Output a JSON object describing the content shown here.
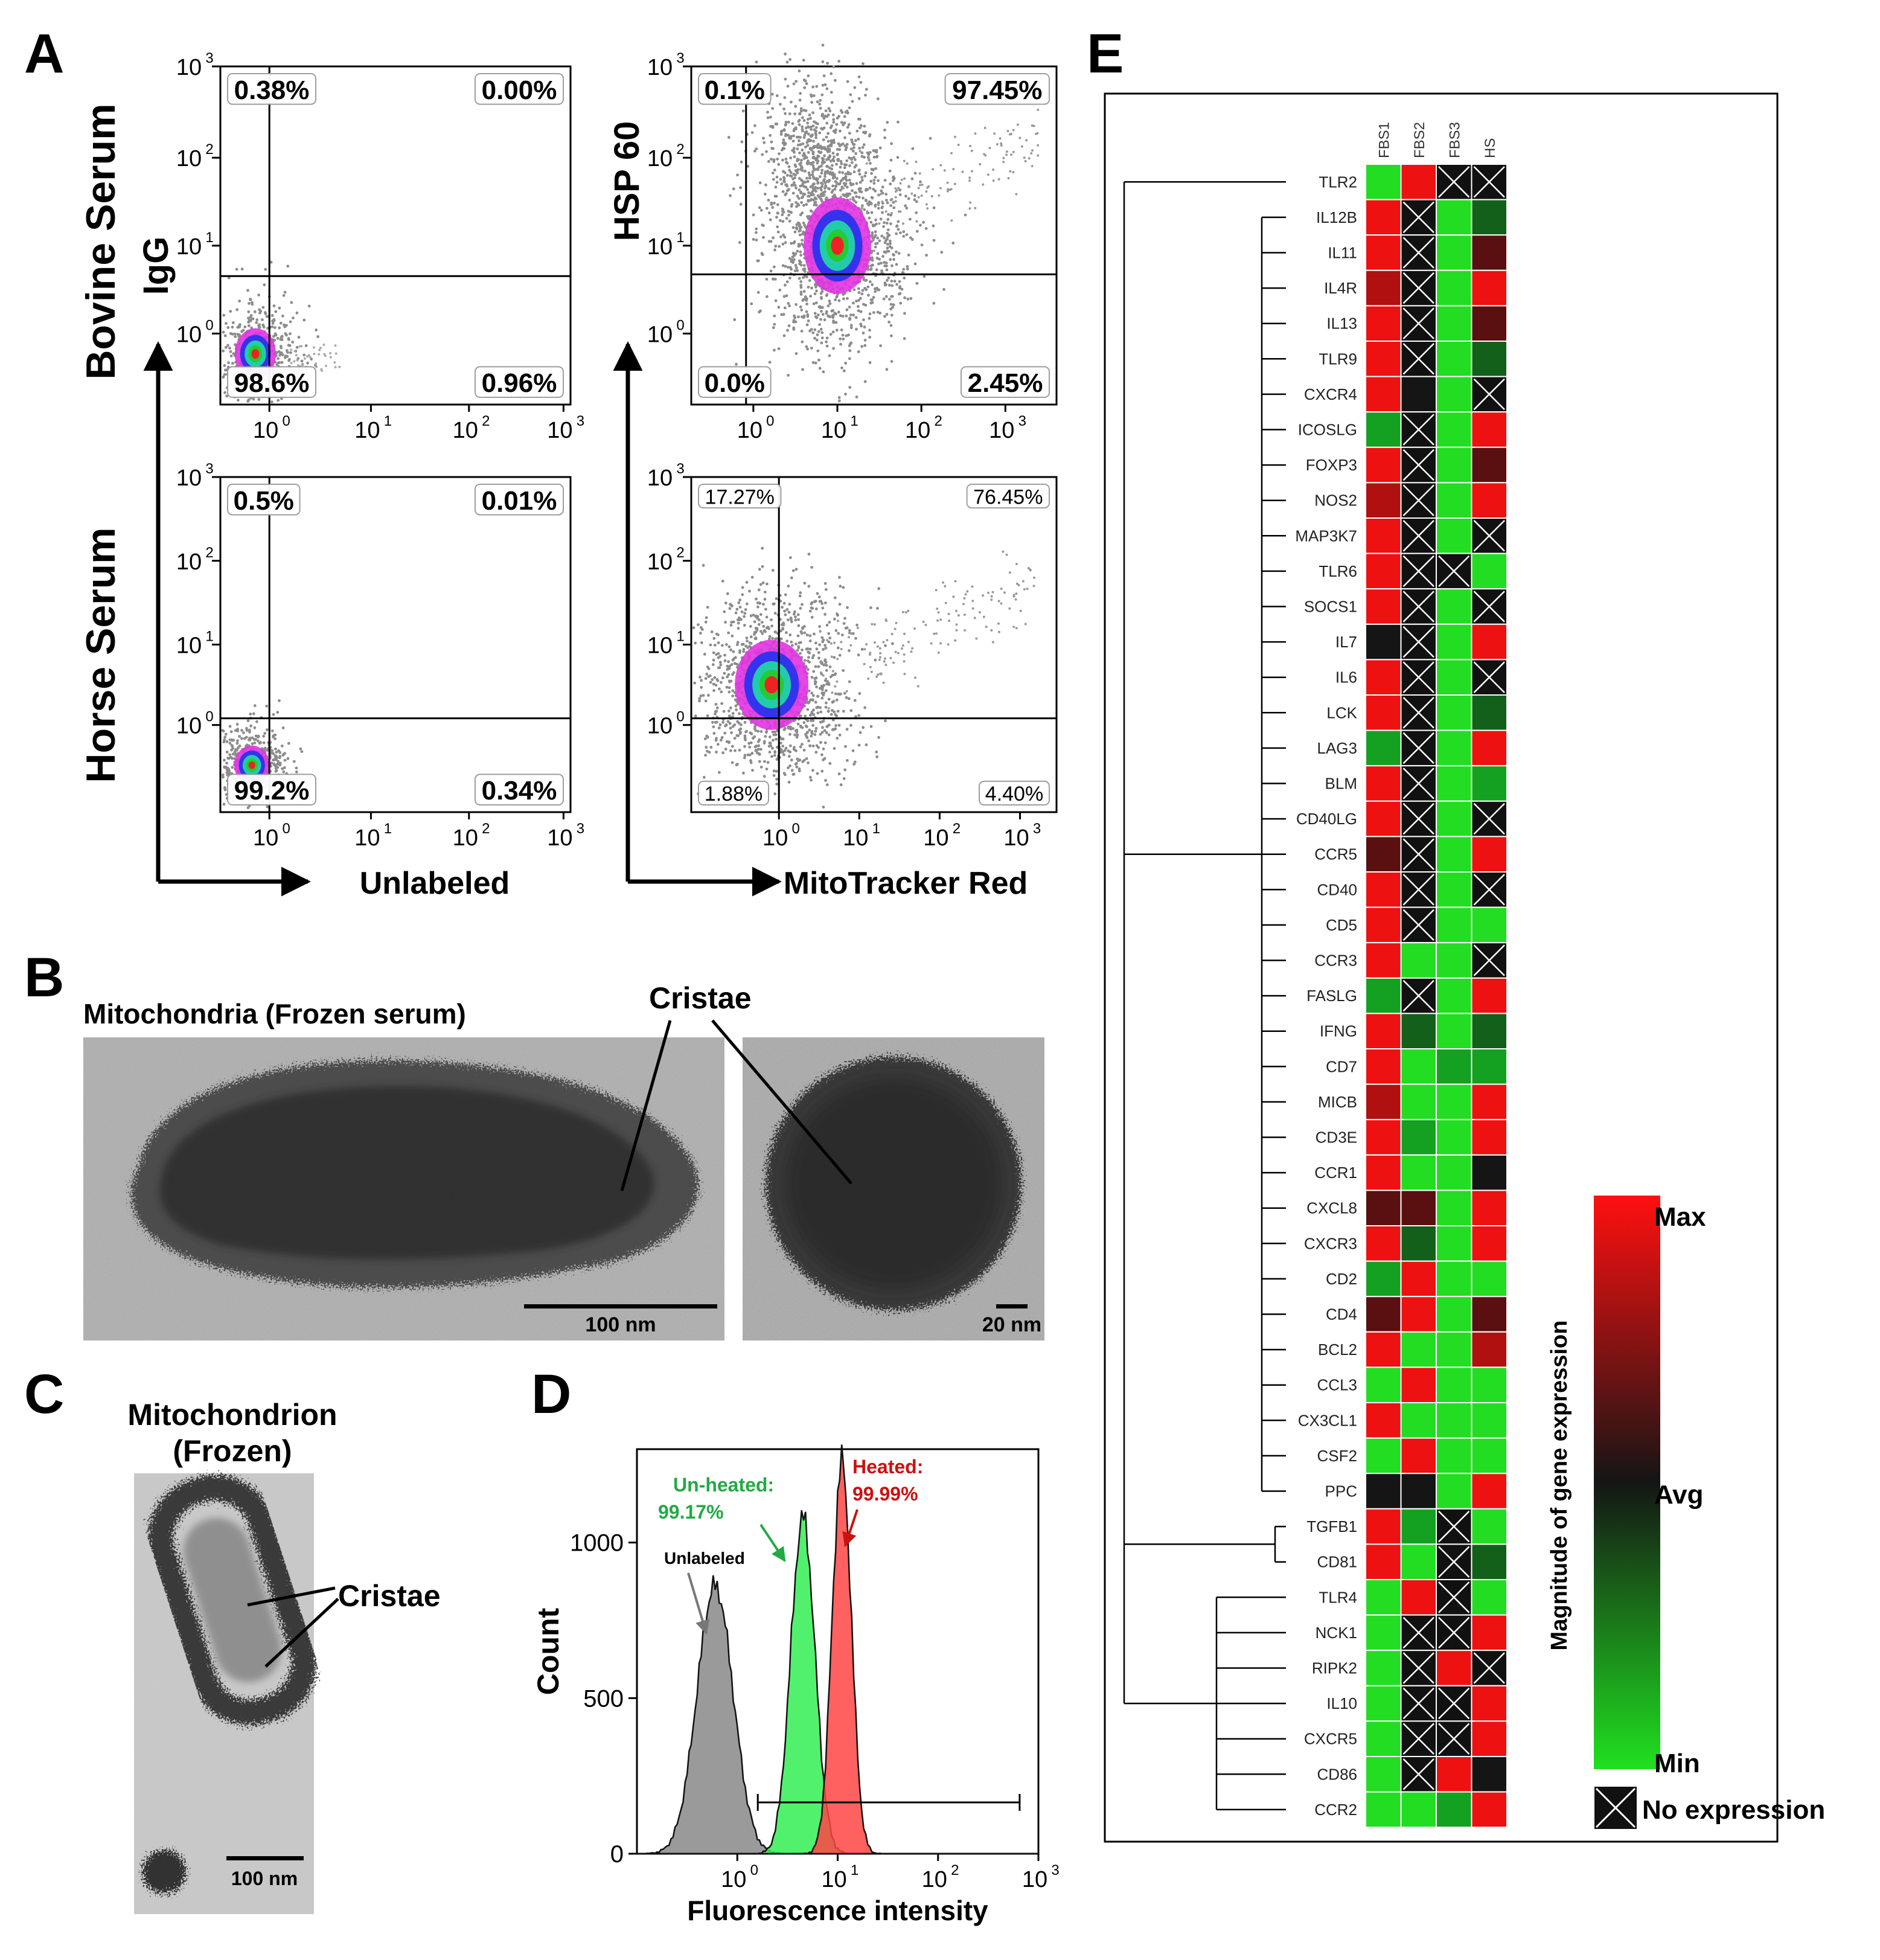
{
  "panel_letters": {
    "a": "A",
    "b": "B",
    "c": "C",
    "d": "D",
    "e": "E"
  },
  "panel_a": {
    "row_labels": [
      "Bovine Serum",
      "Horse Serum"
    ],
    "y_axis_labels": [
      "IgG",
      "HSP 60"
    ],
    "x_axis_labels": [
      "Unlabeled",
      "MitoTracker Red"
    ],
    "plots": [
      {
        "id": "bovine-igg",
        "ul": "0.38%",
        "ur": "0.00%",
        "ll": "98.6%",
        "lr": "0.96%"
      },
      {
        "id": "bovine-hsp60",
        "ul": "0.1%",
        "ur": "97.45%",
        "ll": "0.0%",
        "lr": "2.45%"
      },
      {
        "id": "horse-igg",
        "ul": "0.5%",
        "ur": "0.01%",
        "ll": "99.2%",
        "lr": "0.34%"
      },
      {
        "id": "horse-hsp60",
        "ul": "17.27%",
        "ur": "76.45%",
        "ll": "1.88%",
        "lr": "4.40%"
      }
    ],
    "tick_base": "10",
    "tick_exps": [
      "0",
      "1",
      "2",
      "3"
    ]
  },
  "panel_b": {
    "title": "Mitochondria (Frozen serum)",
    "cristae_label": "Cristae",
    "scale_left": "100 nm",
    "scale_right": "20 nm"
  },
  "panel_c": {
    "title_line1": "Mitochondrion",
    "title_line2": "(Frozen)",
    "cristae_label": "Cristae",
    "scale": "100 nm"
  },
  "chart_data": {
    "type": "area",
    "title": "",
    "xlabel": "Fluorescence intensity",
    "ylabel": "Count",
    "x_scale": "log",
    "xlim": [
      0.1,
      1000
    ],
    "ylim": [
      0,
      1300
    ],
    "yticks": [
      "0",
      "500",
      "1000"
    ],
    "series": [
      {
        "name": "Unlabeled",
        "label": "Unlabeled",
        "peak_x": 0.6,
        "peak_count": 860,
        "color": "#999999"
      },
      {
        "name": "Un-heated",
        "label": "Un-heated:",
        "percent": "99.17%",
        "peak_x": 4.5,
        "peak_count": 1080,
        "color": "#22dd22"
      },
      {
        "name": "Heated",
        "label": "Heated:",
        "percent": "99.99%",
        "peak_x": 11,
        "peak_count": 1260,
        "color": "#ff3333"
      }
    ],
    "gate": {
      "x_from": 1.6,
      "x_to": 650,
      "count": 165
    }
  },
  "panel_e": {
    "columns": [
      "FBS1",
      "FBS2",
      "FBS3",
      "HS"
    ],
    "legend": {
      "max": "Max",
      "avg": "Avg",
      "min": "Min",
      "no_expression": "No expression",
      "axis_title": "Magnitude of gene expression"
    },
    "genes": [
      {
        "name": "TLR2",
        "cells": [
          "g",
          "r",
          "x",
          "x"
        ]
      },
      {
        "name": "IL12B",
        "cells": [
          "r",
          "x",
          "g",
          "dg"
        ]
      },
      {
        "name": "IL11",
        "cells": [
          "r",
          "x",
          "g",
          "dr"
        ]
      },
      {
        "name": "IL4R",
        "cells": [
          "mr",
          "x",
          "g",
          "r"
        ]
      },
      {
        "name": "IL13",
        "cells": [
          "r",
          "x",
          "g",
          "dr"
        ]
      },
      {
        "name": "TLR9",
        "cells": [
          "r",
          "x",
          "g",
          "dg"
        ]
      },
      {
        "name": "CXCR4",
        "cells": [
          "r",
          "k",
          "g",
          "x"
        ]
      },
      {
        "name": "ICOSLG",
        "cells": [
          "mg",
          "x",
          "g",
          "r"
        ]
      },
      {
        "name": "FOXP3",
        "cells": [
          "r",
          "x",
          "g",
          "dr"
        ]
      },
      {
        "name": "NOS2",
        "cells": [
          "mr",
          "x",
          "g",
          "r"
        ]
      },
      {
        "name": "MAP3K7",
        "cells": [
          "r",
          "x",
          "g",
          "x"
        ]
      },
      {
        "name": "TLR6",
        "cells": [
          "r",
          "x",
          "x",
          "g"
        ]
      },
      {
        "name": "SOCS1",
        "cells": [
          "r",
          "x",
          "g",
          "x"
        ]
      },
      {
        "name": "IL7",
        "cells": [
          "k",
          "x",
          "g",
          "r"
        ]
      },
      {
        "name": "IL6",
        "cells": [
          "r",
          "x",
          "g",
          "x"
        ]
      },
      {
        "name": "LCK",
        "cells": [
          "r",
          "x",
          "g",
          "dg"
        ]
      },
      {
        "name": "LAG3",
        "cells": [
          "mg",
          "x",
          "g",
          "r"
        ]
      },
      {
        "name": "BLM",
        "cells": [
          "r",
          "x",
          "g",
          "mg"
        ]
      },
      {
        "name": "CD40LG",
        "cells": [
          "r",
          "x",
          "g",
          "x"
        ]
      },
      {
        "name": "CCR5",
        "cells": [
          "dr",
          "x",
          "g",
          "r"
        ]
      },
      {
        "name": "CD40",
        "cells": [
          "r",
          "x",
          "g",
          "x"
        ]
      },
      {
        "name": "CD5",
        "cells": [
          "r",
          "x",
          "g",
          "g"
        ]
      },
      {
        "name": "CCR3",
        "cells": [
          "r",
          "g",
          "g",
          "x"
        ]
      },
      {
        "name": "FASLG",
        "cells": [
          "mg",
          "x",
          "g",
          "r"
        ]
      },
      {
        "name": "IFNG",
        "cells": [
          "r",
          "dg",
          "g",
          "dg"
        ]
      },
      {
        "name": "CD7",
        "cells": [
          "r",
          "g",
          "mg",
          "mg"
        ]
      },
      {
        "name": "MICB",
        "cells": [
          "mr",
          "g",
          "g",
          "r"
        ]
      },
      {
        "name": "CD3E",
        "cells": [
          "r",
          "mg",
          "g",
          "r"
        ]
      },
      {
        "name": "CCR1",
        "cells": [
          "r",
          "g",
          "g",
          "k"
        ]
      },
      {
        "name": "CXCL8",
        "cells": [
          "dr",
          "dr",
          "g",
          "r"
        ]
      },
      {
        "name": "CXCR3",
        "cells": [
          "r",
          "dg",
          "g",
          "r"
        ]
      },
      {
        "name": "CD2",
        "cells": [
          "mg",
          "r",
          "g",
          "g"
        ]
      },
      {
        "name": "CD4",
        "cells": [
          "dr",
          "r",
          "g",
          "dr"
        ]
      },
      {
        "name": "BCL2",
        "cells": [
          "r",
          "g",
          "g",
          "mr"
        ]
      },
      {
        "name": "CCL3",
        "cells": [
          "g",
          "r",
          "g",
          "g"
        ]
      },
      {
        "name": "CX3CL1",
        "cells": [
          "r",
          "g",
          "g",
          "g"
        ]
      },
      {
        "name": "CSF2",
        "cells": [
          "g",
          "r",
          "g",
          "g"
        ]
      },
      {
        "name": "PPC",
        "cells": [
          "k",
          "k",
          "g",
          "r"
        ]
      },
      {
        "name": "TGFB1",
        "cells": [
          "r",
          "mg",
          "x",
          "g"
        ]
      },
      {
        "name": "CD81",
        "cells": [
          "r",
          "g",
          "x",
          "dg"
        ]
      },
      {
        "name": "TLR4",
        "cells": [
          "g",
          "r",
          "x",
          "g"
        ]
      },
      {
        "name": "NCK1",
        "cells": [
          "g",
          "x",
          "x",
          "r"
        ]
      },
      {
        "name": "RIPK2",
        "cells": [
          "g",
          "x",
          "r",
          "x"
        ]
      },
      {
        "name": "IL10",
        "cells": [
          "g",
          "x",
          "x",
          "r"
        ]
      },
      {
        "name": "CXCR5",
        "cells": [
          "g",
          "x",
          "x",
          "r"
        ]
      },
      {
        "name": "CD86",
        "cells": [
          "g",
          "x",
          "r",
          "k"
        ]
      },
      {
        "name": "CCR2",
        "cells": [
          "g",
          "g",
          "mg",
          "r"
        ]
      }
    ],
    "colors": {
      "r": "#ee1111",
      "mr": "#b01010",
      "dr": "#5a1010",
      "k": "#151515",
      "dg": "#12601a",
      "mg": "#14a020",
      "g": "#22dd22",
      "x": "#111111"
    }
  }
}
